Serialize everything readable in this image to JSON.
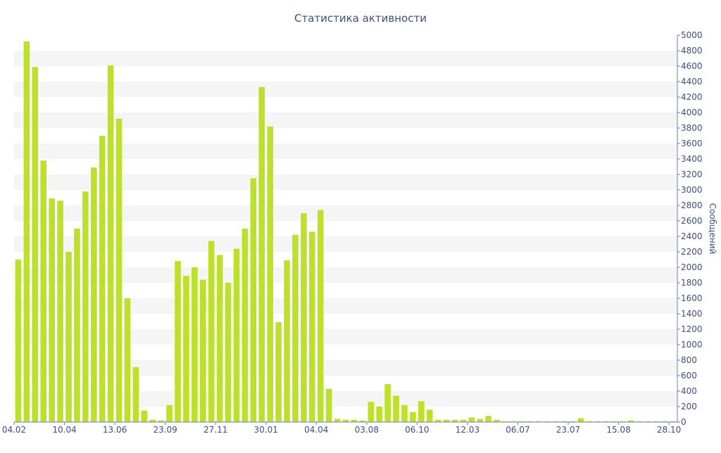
{
  "chart_data": {
    "type": "bar",
    "title": "Статистика активности",
    "ylabel": "Сообщений",
    "xlabel": "",
    "ylim": [
      0,
      5000
    ],
    "yticks": [
      0,
      200,
      400,
      600,
      800,
      1000,
      1200,
      1400,
      1600,
      1800,
      2000,
      2200,
      2400,
      2600,
      2800,
      3000,
      3200,
      3400,
      3600,
      3800,
      4000,
      4200,
      4400,
      4600,
      4800,
      5000
    ],
    "xtick_labels": [
      {
        "index": 0,
        "label": "04.02"
      },
      {
        "index": 6,
        "label": "10.04"
      },
      {
        "index": 12,
        "label": "13.06"
      },
      {
        "index": 18,
        "label": "23.09"
      },
      {
        "index": 24,
        "label": "27.11"
      },
      {
        "index": 30,
        "label": "30.01"
      },
      {
        "index": 36,
        "label": "04.04"
      },
      {
        "index": 42,
        "label": "03.08"
      },
      {
        "index": 48,
        "label": "06.10"
      },
      {
        "index": 54,
        "label": "12.03"
      },
      {
        "index": 60,
        "label": "06.07"
      },
      {
        "index": 66,
        "label": "23.07"
      },
      {
        "index": 72,
        "label": "15.08"
      },
      {
        "index": 78,
        "label": "28.10"
      }
    ],
    "values": [
      2100,
      4920,
      4590,
      3380,
      2890,
      2860,
      2200,
      2500,
      2980,
      3290,
      3700,
      4610,
      3920,
      1600,
      710,
      150,
      30,
      20,
      220,
      2080,
      1890,
      2000,
      1840,
      2340,
      2160,
      1800,
      2240,
      2500,
      3150,
      4330,
      3820,
      1290,
      2090,
      2420,
      2700,
      2460,
      2740,
      430,
      40,
      30,
      30,
      20,
      260,
      200,
      490,
      340,
      220,
      130,
      270,
      160,
      30,
      30,
      30,
      30,
      60,
      40,
      80,
      30,
      10,
      10,
      10,
      10,
      10,
      10,
      10,
      10,
      10,
      50,
      10,
      10,
      10,
      10,
      10,
      20,
      10,
      10,
      10,
      10,
      10
    ],
    "grid": true,
    "bar_color": "#bde02a",
    "band_color": "#f5f5f5",
    "text_color": "#3b4f86",
    "axis_color": "#6b7fb3"
  }
}
